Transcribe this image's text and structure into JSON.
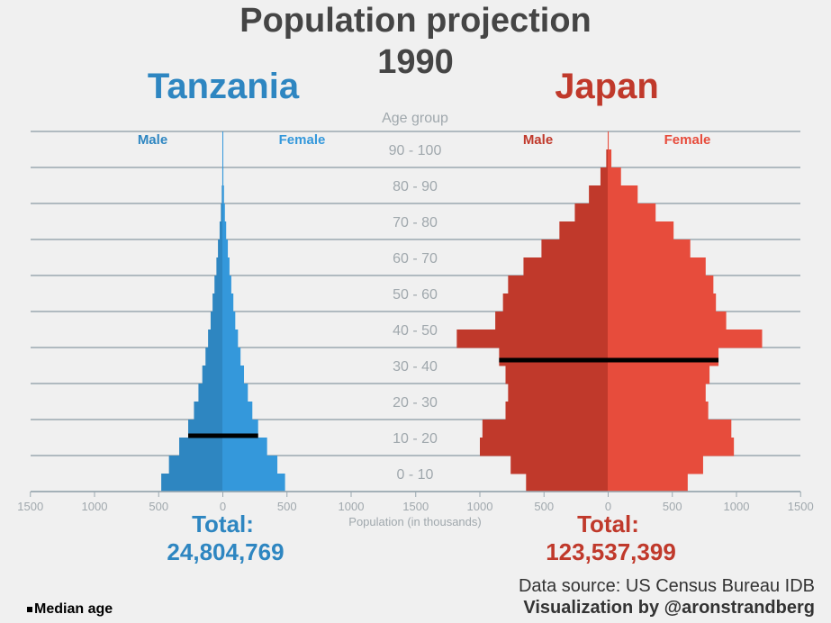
{
  "title_line1": "Population projection",
  "title_line2": "1990",
  "center_axis_label": "Age group",
  "x_axis_label": "Population (in thousands)",
  "age_group_labels": [
    "0 - 10",
    "10 - 20",
    "20 - 30",
    "30 - 40",
    "40 - 50",
    "50 - 60",
    "60 - 70",
    "70 - 80",
    "80 - 90",
    "90 - 100"
  ],
  "x_tick_labels": [
    "1500",
    "1000",
    "500",
    "0",
    "500",
    "1000",
    "1500"
  ],
  "legend_label": "Median age",
  "source_text": "Data source: US Census Bureau IDB",
  "credit_text": "Visualization by @aronstrandberg",
  "colors": {
    "tanzania_male": "#2e86c1",
    "tanzania_female": "#3498db",
    "japan_male": "#c0392b",
    "japan_female": "#e74c3c",
    "grid": "#9aa8b0",
    "median": "#000000"
  },
  "chart_data": [
    {
      "type": "bar",
      "orientation": "horizontal-pyramid",
      "country": "Tanzania",
      "male_label": "Male",
      "female_label": "Female",
      "total_label": "Total:",
      "total": "24,804,769",
      "median_age": 15.5,
      "xlim": [
        -1500,
        1500
      ],
      "ylim": [
        0,
        100
      ],
      "age_bins": [
        0,
        5,
        10,
        15,
        20,
        25,
        30,
        35,
        40,
        45,
        50,
        55,
        60,
        65,
        70,
        75,
        80,
        85,
        90
      ],
      "male": [
        480,
        420,
        340,
        270,
        225,
        190,
        160,
        135,
        115,
        95,
        80,
        65,
        50,
        38,
        25,
        15,
        8,
        4,
        1
      ],
      "female": [
        485,
        425,
        345,
        275,
        230,
        195,
        165,
        138,
        118,
        97,
        82,
        66,
        52,
        39,
        26,
        16,
        9,
        4,
        1
      ]
    },
    {
      "type": "bar",
      "orientation": "horizontal-pyramid",
      "country": "Japan",
      "male_label": "Male",
      "female_label": "Female",
      "total_label": "Total:",
      "total": "123,537,399",
      "median_age": 36.5,
      "xlim": [
        -1500,
        1500
      ],
      "ylim": [
        0,
        100
      ],
      "age_bins": [
        0,
        5,
        10,
        15,
        20,
        25,
        30,
        35,
        40,
        45,
        50,
        55,
        60,
        65,
        70,
        75,
        80,
        85,
        90,
        95
      ],
      "male": [
        640,
        760,
        1000,
        980,
        800,
        780,
        800,
        850,
        1180,
        880,
        820,
        780,
        660,
        520,
        380,
        260,
        150,
        60,
        15,
        3
      ],
      "female": [
        620,
        740,
        980,
        960,
        780,
        760,
        790,
        860,
        1200,
        920,
        840,
        820,
        760,
        640,
        510,
        370,
        230,
        100,
        25,
        4
      ]
    }
  ]
}
